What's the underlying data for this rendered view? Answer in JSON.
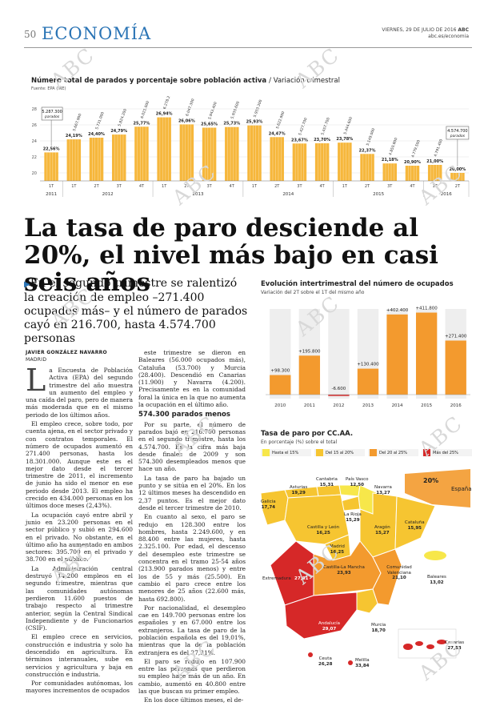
{
  "header": {
    "page_number": "50",
    "section": "ECONOMÍA",
    "date": "VIERNES, 29 DE JULIO DE 2016",
    "site": "abc.es/economia",
    "brand": "ABC"
  },
  "watermark": "ABC",
  "chart1": {
    "title": "Número total de parados y porcentaje sobre población activa",
    "title_suffix": "/ Variación trimestral",
    "source": "Fuente: EPA (INE)",
    "callout_first": "5.287.300",
    "callout_first_sub": "parados",
    "callout_last": "4.574.700",
    "callout_last_sub": "parados",
    "y_ticks": [
      "28",
      "26",
      "24",
      "22",
      "20"
    ]
  },
  "headline": "La tasa de paro desciende al 20%, el nivel más bajo en casi seis años",
  "subhead": "En el segundo trimestre se ralentizó la creación de empleo –271.400 ocupados más– y el número de parados cayó en 216.700, hasta 4.574.700 personas",
  "byline": "JAVIER GONZÁLEZ NAVARRO",
  "dateline": "MADRID",
  "article": {
    "col1": [
      "a Encuesta de Población Activa (EPA) del segundo trimestre del año muestra un aumento del empleo y una caída del paro, pero de manera más moderada que en el mismo periodo de los últimos años.",
      "El empleo crece, sobre todo, por cuenta ajena, en el sector privado y con contratos temporales. El número de ocupados aumentó en 271.400 personas, hasta los 18.301.000. Aunque este es el mejor dato desde el tercer trimestre de 2011, el incremento de junio ha sido el menor en ese periodo desde 2013. El empleo ha crecido en 434.000 personas en los últimos doce meses (2,43%).",
      "La ocupación cayó entre abril y junio en 23.200 personas en el sector público y subió en 294.600 en el privado. No obstante, en el último año ha aumentado en ambos sectores: 395.700 en el privado y 38.700 en el público.",
      "La Administración central destruyó 14.200 empleos en el segundo trimestre, mientras que las comunidades autónomas perdieron 11.600 puestos de trabajo respecto al trimestre anterior, según la Central Sindical Independiente y de Funcionarios (CSIF).",
      "El empleo crece en servicios, construcción e industria y solo ha descendido en agricultura. En términos interanuales, sube en servicios y agricultura y baja en construcción e industria.",
      "Por comunidades autónomas, los mayores incrementos de ocupados"
    ],
    "col2_a": [
      "este trimestre se dieron en Baleares (56.000 ocupados más), Cataluña (53.700) y Murcia (28.400). Descendió en Canarias (11.900) y Navarra (4.200). Precisamente es en la comunidad foral la única en la que no aumenta la ocupación en el último año."
    ],
    "col2_subtitle": "574.300 parados menos",
    "col2_b": [
      "Por su parte, el número de parados bajó en 216.700 personas en el segundo trimestre, hasta los 4.574.700. Es la cifra más baja desde finales de 2009 y son 574.300 desempleados menos que hace un año.",
      "La tasa de paro ha bajado un punto y se sitúa en el 20%. En los 12 últimos meses ha descendido en 2,37 puntos. Es el mejor dato desde el tercer trimestre de 2010.",
      "En cuanto al sexo, el paro se redujo en 128.300 entre los hombres, hasta 2.249.600, y en 88.400 entre las mujeres, hasta 2.325.100. Por edad, el descenso del desempleo este trimestre se concentra en el tramo 25-54 años (213.900 parados menos) y entre los de 55 y más (25.500). En cambio el paro crece entre los menores de 25 años (22.600 más, hasta 692.800).",
      "Por nacionalidad, el desempleo cae en 149.700 personas entre los españoles y en 67.000 entre los extranjeros. La tasa de paro de la población española es del 19,01%, mientras que la de la población extranjera es del 27,31%.",
      "El paro se redujo en 107.900 entre las personas que perdieron su empleo hace más de un año. En cambio, aumentó en 40.800 entre las que buscan su primer empleo.",
      "En los doce últimos meses, el de-"
    ]
  },
  "chart1_data": {
    "type": "bar",
    "years": [
      {
        "label": "2011",
        "quarters": [
          "1T"
        ]
      },
      {
        "label": "2012",
        "quarters": [
          "1T",
          "2T",
          "3T",
          "4T"
        ]
      },
      {
        "label": "2013",
        "quarters": [
          "1T",
          "2T",
          "3T",
          "4T"
        ]
      },
      {
        "label": "2014",
        "quarters": [
          "1T",
          "2T",
          "3T",
          "4T"
        ]
      },
      {
        "label": "2015",
        "quarters": [
          "1T",
          "2T",
          "3T",
          "4T"
        ]
      },
      {
        "label": "2016",
        "quarters": [
          "1T",
          "2T"
        ]
      }
    ],
    "rate": [
      22.56,
      24.19,
      24.4,
      24.79,
      25.77,
      26.94,
      26.06,
      25.65,
      25.73,
      25.93,
      24.47,
      23.67,
      23.7,
      23.78,
      22.37,
      21.18,
      20.9,
      21.0,
      20.0
    ],
    "rate_labels": [
      "22,56%",
      "24,19%",
      "24,40%",
      "24,79%",
      "25,77%",
      "26,94%",
      "26,06%",
      "25,65%",
      "25,73%",
      "25,93%",
      "24,47%",
      "23,67%",
      "23,70%",
      "23,78%",
      "22,37%",
      "21,18%",
      "20,90%",
      "21,00%",
      "20,00%"
    ],
    "parados_labels": [
      "5.287.300",
      "5.667.900",
      "5.731.000",
      "5.824.200",
      "6.021.000",
      "6.278.200",
      "6.047.300",
      "5.943.400",
      "5.935.600",
      "5.933.300",
      "5.622.900",
      "5.427.700",
      "5.457.700",
      "5.444.600",
      "5.149.000",
      "4.850.800",
      "4.779.500",
      "4.791.400",
      "4.574.700"
    ],
    "ylim": [
      19,
      29
    ],
    "bar_color": "#f6b73c"
  },
  "chart2_data": {
    "type": "bar",
    "title": "Evolución intertrimestral del número de ocupados",
    "subtitle": "Variación del 2T sobre el 1T del mismo año",
    "categories": [
      "2010",
      "2011",
      "2012",
      "2013",
      "2014",
      "2015",
      "2016"
    ],
    "values": [
      98300,
      195800,
      -6600,
      130400,
      402400,
      411800,
      271400
    ],
    "labels": [
      "+98.300",
      "+195.800",
      "-6.600",
      "+130.400",
      "+402.400",
      "+411.800",
      "+271.400"
    ],
    "colors": [
      "#f39a2e",
      "#f39a2e",
      "#d62828",
      "#f39a2e",
      "#f39a2e",
      "#f39a2e",
      "#f39a2e"
    ],
    "ylim": [
      -20000,
      430000
    ]
  },
  "map": {
    "title": "Tasa de paro por CC.AA.",
    "subtitle": "En porcentaje (%) sobre el total",
    "legend": [
      {
        "label": "Hasta el 15%",
        "color": "#f7e74a"
      },
      {
        "label": "Del 15 al 20%",
        "color": "#f6c531"
      },
      {
        "label": "Del 20 al 25%",
        "color": "#f39a2e"
      },
      {
        "label": "Más del 25%",
        "color": "#d62828"
      }
    ],
    "regions": [
      {
        "name": "Galicia",
        "value": "17,74"
      },
      {
        "name": "Asturias",
        "value": "19,29"
      },
      {
        "name": "Cantabria",
        "value": "15,31"
      },
      {
        "name": "País Vasco",
        "value": "12,50"
      },
      {
        "name": "Navarra",
        "value": "13,27"
      },
      {
        "name": "La Rioja",
        "value": "15,29"
      },
      {
        "name": "Aragón",
        "value": "15,27"
      },
      {
        "name": "Cataluña",
        "value": "15,95"
      },
      {
        "name": "Castilla y León",
        "value": "16,25"
      },
      {
        "name": "Madrid",
        "value": "16,25"
      },
      {
        "name": "Castilla-La Mancha",
        "value": "23,93"
      },
      {
        "name": "Comunidad Valenciana",
        "value": "21,10"
      },
      {
        "name": "Extremadura",
        "value": "27,81"
      },
      {
        "name": "Andalucía",
        "value": "29,07"
      },
      {
        "name": "Murcia",
        "value": "18,70"
      },
      {
        "name": "Baleares",
        "value": "13,02"
      },
      {
        "name": "Canarias",
        "value": "27,53"
      },
      {
        "name": "Ceuta",
        "value": "26,28"
      },
      {
        "name": "Melilla",
        "value": "33,84"
      }
    ],
    "spain_label": "España",
    "spain_value": "20%"
  }
}
